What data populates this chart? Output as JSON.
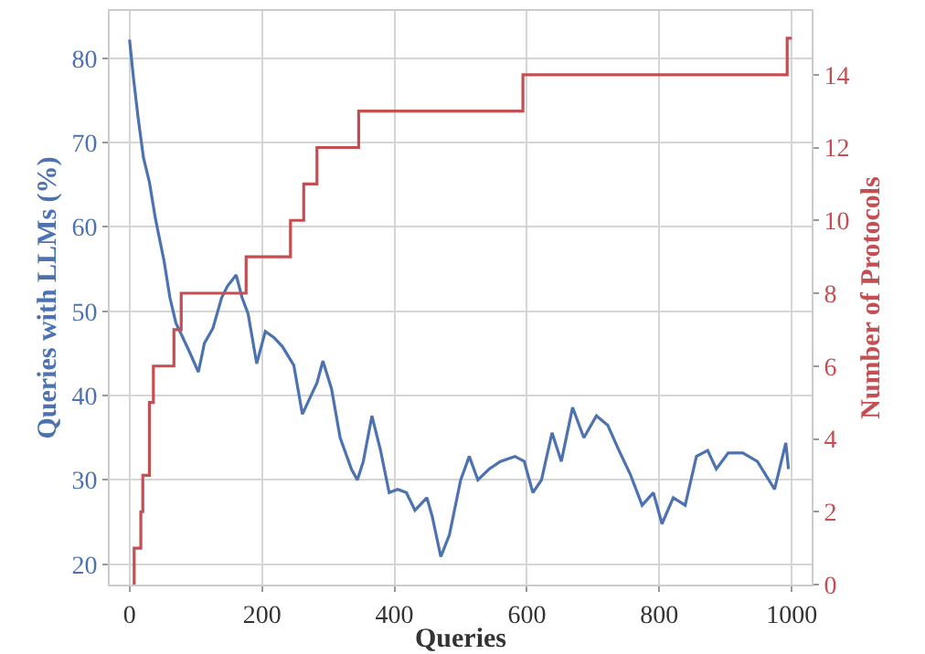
{
  "chart_data": {
    "type": "line",
    "xlabel": "Queries",
    "ylabel": "Queries with LLMs (%)",
    "y2label": "Number of Protocols",
    "xlim": [
      -30,
      1030
    ],
    "xticks": [
      0,
      200,
      400,
      600,
      800,
      1000
    ],
    "ylim": [
      17.6,
      85.6
    ],
    "yticks": [
      20,
      30,
      40,
      50,
      60,
      70,
      80
    ],
    "y2lim": [
      0,
      15.75
    ],
    "y2ticks": [
      0,
      2,
      4,
      6,
      8,
      10,
      12,
      14
    ],
    "grid": true,
    "series": [
      {
        "type": "line",
        "color": "#4c72b0",
        "x": [
          0,
          6,
          13,
          21,
          30,
          39,
          52,
          61,
          70,
          78,
          91,
          104,
          113,
          126,
          139,
          148,
          161,
          170,
          179,
          192,
          205,
          218,
          231,
          248,
          261,
          274,
          283,
          292,
          305,
          318,
          335,
          344,
          353,
          366,
          379,
          392,
          405,
          418,
          431,
          449,
          457,
          470,
          483,
          500,
          513,
          526,
          543,
          560,
          582,
          596,
          609,
          622,
          638,
          652,
          669,
          686,
          705,
          722,
          739,
          756,
          774,
          791,
          804,
          821,
          839,
          856,
          873,
          886,
          904,
          926,
          948,
          974,
          991,
          995
        ],
        "values": [
          82.2,
          77.6,
          72.9,
          68.2,
          65.3,
          61,
          56,
          51.6,
          48.6,
          47.3,
          45.1,
          42.8,
          46.2,
          48,
          51.6,
          53,
          54.3,
          51.6,
          49.7,
          43.8,
          47.6,
          46.9,
          45.8,
          43.6,
          37.8,
          40,
          41.5,
          44.1,
          40.8,
          35,
          31.3,
          30,
          32.2,
          37.6,
          33.5,
          28.5,
          28.9,
          28.5,
          26.4,
          27.9,
          25.7,
          20.9,
          23.5,
          30,
          32.8,
          30,
          31.3,
          32.2,
          32.8,
          32.2,
          28.5,
          30,
          35.6,
          32.2,
          38.6,
          35,
          37.6,
          36.5,
          33.5,
          30.7,
          27,
          28.5,
          24.8,
          27.9,
          27,
          32.8,
          33.5,
          31.3,
          33.2,
          33.2,
          32.2,
          28.9,
          34.4,
          31.3
        ]
      },
      {
        "type": "step",
        "axis": "y2",
        "color": "#c44e52",
        "x": [
          5,
          7,
          17,
          20,
          30,
          36,
          67,
          78,
          176,
          243,
          263,
          283,
          346,
          594,
          993,
          1000
        ],
        "values": [
          0,
          1,
          2,
          3,
          5,
          6,
          7,
          8,
          9,
          10,
          11,
          12,
          13,
          14,
          15,
          15
        ]
      }
    ]
  }
}
